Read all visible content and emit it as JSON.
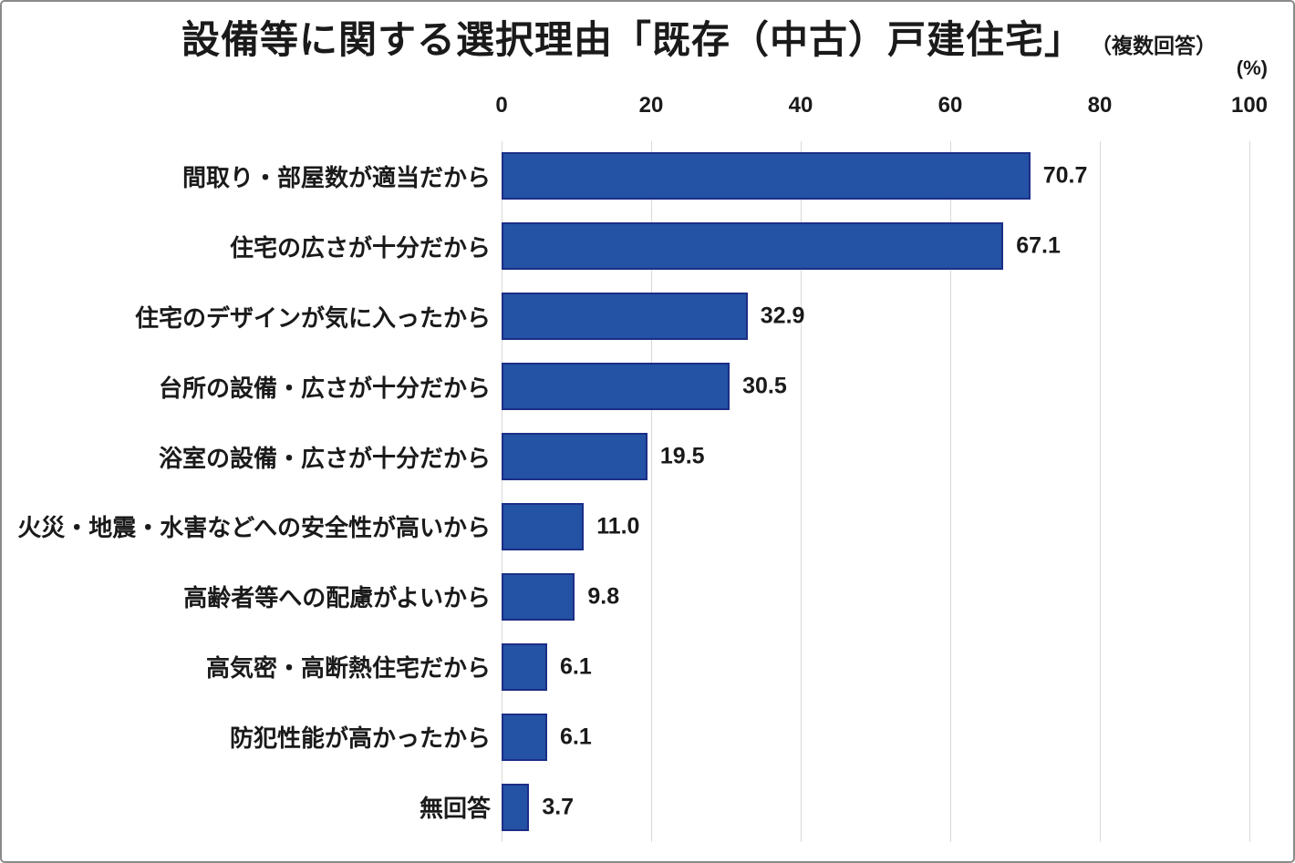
{
  "chart_data": {
    "type": "bar",
    "orientation": "horizontal",
    "title": "設備等に関する選択理由「既存（中古）戸建住宅」",
    "subtitle": "（複数回答）",
    "unit_label": "(%)",
    "categories": [
      "間取り・部屋数が適当だから",
      "住宅の広さが十分だから",
      "住宅のデザインが気に入ったから",
      "台所の設備・広さが十分だから",
      "浴室の設備・広さが十分だから",
      "火災・地震・水害などへの安全性が高いから",
      "高齢者等への配慮がよいから",
      "高気密・高断熱住宅だから",
      "防犯性能が高かったから",
      "無回答"
    ],
    "values": [
      70.7,
      67.1,
      32.9,
      30.5,
      19.5,
      11.0,
      9.8,
      6.1,
      6.1,
      3.7
    ],
    "value_labels": [
      "70.7",
      "67.1",
      "32.9",
      "30.5",
      "19.5",
      "11.0",
      "9.8",
      "6.1",
      "6.1",
      "3.7"
    ],
    "xlim": [
      0,
      100
    ],
    "xticks": [
      0,
      20,
      40,
      60,
      80,
      100
    ],
    "grid": true,
    "legend": false,
    "bar_color": "#2452a4",
    "bar_border_color": "#1c2e87",
    "gridline_color": "#d9d9d9"
  }
}
